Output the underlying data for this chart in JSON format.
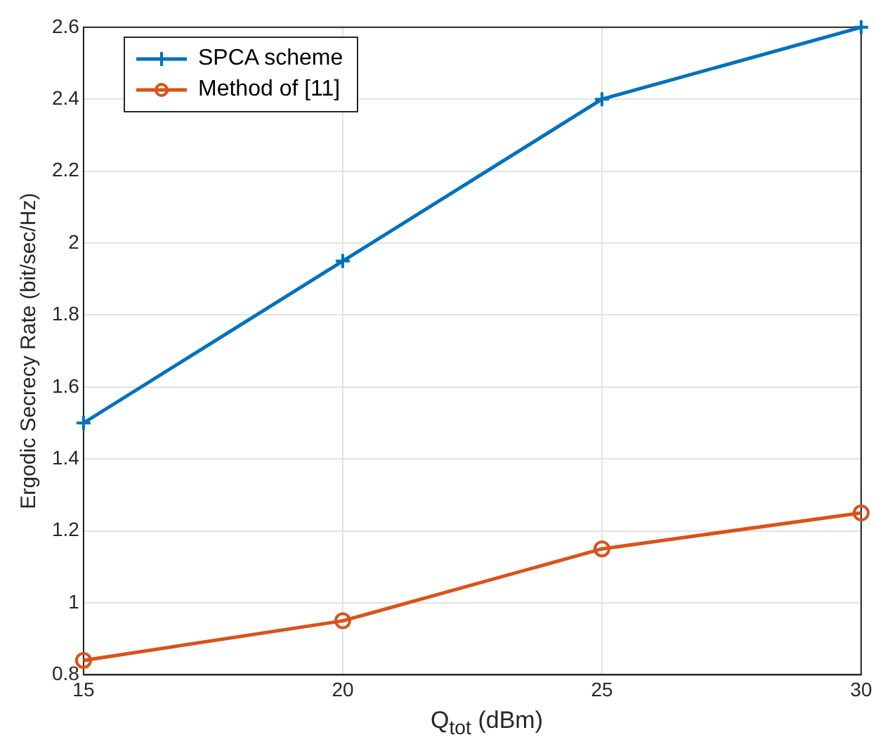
{
  "chart_data": {
    "type": "line",
    "xlabel": "Q$_{tot}$ (dBm)",
    "ylabel": "Ergodic Secrecy Rate (bit/sec/Hz)",
    "x": [
      15,
      20,
      25,
      30
    ],
    "series": [
      {
        "name": "SPCA scheme",
        "color": "#0072bd",
        "marker": "cross",
        "values": [
          1.5,
          1.95,
          2.4,
          2.6
        ]
      },
      {
        "name": "Method of [11]",
        "color": "#d95319",
        "marker": "circle",
        "values": [
          0.84,
          0.95,
          1.15,
          1.25
        ]
      }
    ],
    "xlim": [
      15,
      30
    ],
    "xticks": [
      15,
      20,
      25,
      30
    ],
    "ylim": [
      0.8,
      2.6
    ],
    "yticks": [
      0.8,
      1,
      1.2,
      1.4,
      1.6,
      1.8,
      2,
      2.2,
      2.4,
      2.6
    ],
    "grid": true,
    "legend": "top left",
    "line_style": "solid"
  }
}
